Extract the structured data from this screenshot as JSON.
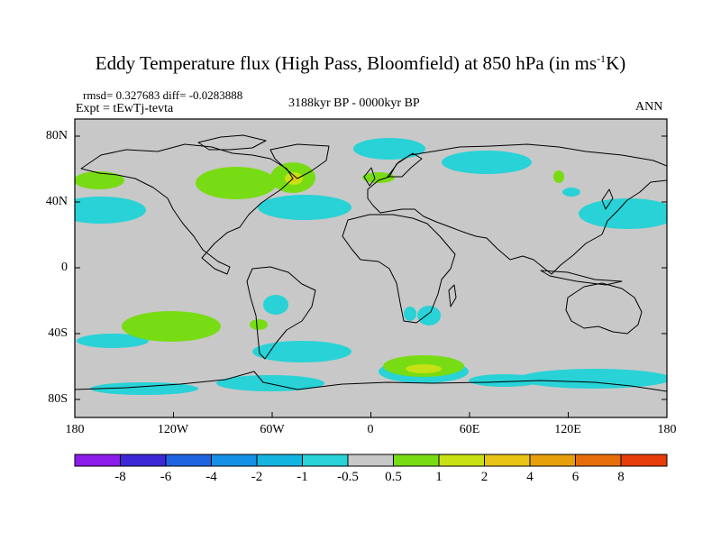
{
  "title": {
    "main": "Eddy Temperature flux (High Pass, Bloomfield) at 850 hPa (in ms",
    "sup": "-1",
    "end": "K)"
  },
  "stats": "rmsd= 0.327683 diff= -0.0283888",
  "expt": "Expt = tEwTj-tevta",
  "period": "3188kyr BP - 0000kyr BP",
  "season": "ANN",
  "lat_labels": [
    "80N",
    "40N",
    "0",
    "40S",
    "80S"
  ],
  "lon_labels": [
    "180",
    "120W",
    "60W",
    "0",
    "60E",
    "120E",
    "180"
  ],
  "colorbar": {
    "labels": [
      "-8",
      "-6",
      "-4",
      "-2",
      "-1",
      "-0.5",
      "0.5",
      "1",
      "2",
      "4",
      "6",
      "8"
    ],
    "colors": [
      "#8c1eeb",
      "#3c28d7",
      "#1e64e1",
      "#1491e6",
      "#14b4e1",
      "#28d2d7",
      "#c8c8c8",
      "#78dc14",
      "#c8e114",
      "#e6c314",
      "#e6a00a",
      "#e66e0a",
      "#e63c0a"
    ]
  },
  "colors": {
    "ocean_bg": "#c8c8c8",
    "coast": "#000000"
  }
}
